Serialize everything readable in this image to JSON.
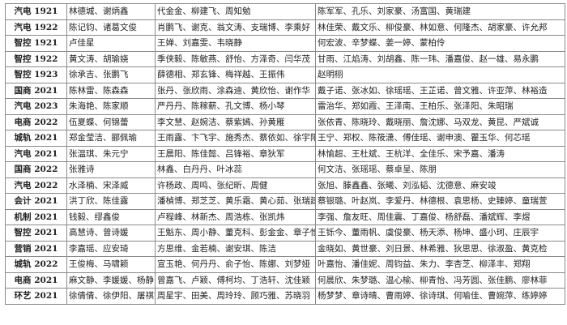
{
  "rows": [
    {
      "class": "汽电 1921",
      "mentors": "林德城、谢炳鑫",
      "group_a": "代金金、柳建飞、周知勉",
      "group_b": "陈军军、孔乐、刘家豪、汤富国、黄瑞建"
    },
    {
      "class": "汽电 1922",
      "mentors": "陈记钧、诸葛文俊",
      "group_a": "肖鹏飞、谢克、翁文涛、支瑞博、李乘好",
      "group_b": "林佳荣、戴文乐、柳俊豪、林如意、何隆杰、胡家豪、许允邦"
    },
    {
      "class": "智控 1921",
      "mentors": "卢佳星",
      "group_a": "王婵、刘嘉雯、韦晓静",
      "group_b": "何宏波、辛梦蝶、姜一婷、蒙柏伶"
    },
    {
      "class": "智控 1922",
      "mentors": "黄文涛、胡瑜娆",
      "group_a": "季侠毅、陈敏燕、舒怡、方泽奇、闫华茂",
      "group_b": "甘雨、江焰涛、刘胡鑫、陈一玮、潘嘉俊、赵一雄、易永鹏"
    },
    {
      "class": "智控 1923",
      "mentors": "徐承吉、张鹏飞",
      "group_a": "薛德相、郑玄锋、梅祥越、王振伟",
      "group_b": "赵明栩"
    },
    {
      "class": "国商 2021",
      "mentors": "陈林雷、陈森森",
      "group_a": "张丹、张欣雨、涂森迪、黄欣怡、谢作华",
      "group_b": "戴子诺、张冰如、徐瑶瑶、王芷诺、曾文雅、许亚萍、林裕造"
    },
    {
      "class": "汽电 2023",
      "mentors": "朱海艳、陈家顺",
      "group_a": "严丹丹、陈稼薪、孔文博、杨小琴",
      "group_b": "雷治华、郑如霞、王泽南、王柏乐、张泽阳、朱昭瑞"
    },
    {
      "class": "电商 2022",
      "mentors": "伍夏蝶、何锦蕾",
      "group_a": "李文慧、赵婉洁、蔡紫嫣、孙黄雁",
      "group_b": "张依青、陈晓玲、戴晓丽、詹沈娜、马双龙、黄昆、严斌诚"
    },
    {
      "class": "城轨 2021",
      "mentors": "郑金莹洁、郦佩瑜",
      "group_a": "王雨露、卞飞宇、施秀杰、蔡依如、徐宇阳",
      "group_b": "王宁、郑权、陈筱潇、傅佳瑶、谢申澳、瞿玉华、何芯瑶"
    },
    {
      "class": "汽电 2021",
      "mentors": "张温琪、朱元宁",
      "group_a": "王晨阳、陈佳懿、吕锋裕、章狄军",
      "group_b": "林愉超、王杜斌、王杭洋、全佳乐、宋予嘉、潘涛"
    },
    {
      "class": "国商 2022",
      "mentors": "张雅诗",
      "group_a": "林鑫、白丹丹、叶冰蕊",
      "group_b": "何文洁、张瑶瑶、蔡卓呈、陈朋"
    },
    {
      "class": "汽电 2022",
      "mentors": "水泽楠、宋泽威",
      "group_a": "许杨政、周鸣、张纪昕、周健",
      "group_b": "张旭、滕鑫鑫、张曦、刘泓韬、沈德意、麻安竣"
    },
    {
      "class": "会计 2021",
      "mentors": "洪丁欣、陈佳露",
      "group_a": "潘楨博、郑芝芝、黄乐霜、黄心茹、张瑞建",
      "group_b": "蔡银璐、叶赵岚、李爱丹、林德根、袁思杨、史臻婷、童瑞萱"
    },
    {
      "class": "机制 2021",
      "mentors": "钱毅、缪鑫俊",
      "group_a": "卢程峰、林新杰、周浩栋、张凯炜",
      "group_b": "李强、詹友旺、周佳震、丁嘉俊、杨舒磊、潘斌辉、李煜"
    },
    {
      "class": "智控 2021",
      "mentors": "高慧诗、曾诗媛",
      "group_a": "王魁东、周小静、董克科、彭金金、章子怡",
      "group_b": "王铄今、董雨帆、虞俊豪、杨天添、杨坤、盛小珂、庄辰宇"
    },
    {
      "class": "营销 2021",
      "mentors": "李嘉瑶、应安琦",
      "group_a": "方思维、金若楠、谢安琪、陈洁",
      "group_b": "金晓如、黄世豪、刘日景、林希雅、狄思思、徐淑盈、黄克检"
    },
    {
      "class": "城轨 2022",
      "mentors": "王俊梅、马啸颖",
      "group_a": "宣玉艳、何丹丹、俞子怡、陈娜、刘梦娅",
      "group_b": "叶嘉怡、潘佳妮、周钧益、朱力、李杏芝、柳泽丰、郑翔"
    },
    {
      "class": "电商 2021",
      "mentors": "麻文静、李媛媛、杨静",
      "group_a": "曾嘉飞、卢颖、傅柯均、丁浩轩、沈佳颖",
      "group_b": "何晨欣、朱梦璐、温心榆、柳青怡、冯芳圆、张佳鹏、廖林菲"
    },
    {
      "class": "环艺 2021",
      "mentors": "徐倩倩、徐伊阳、屠祺茜",
      "group_a": "周星宇、田美、周玲玲、顾巧雅、苏晓羽",
      "group_b": "杨梦梦、章诗晴、曹雨婷、徐诗琪、何喻佳、曹婉萍、练婷婷"
    }
  ]
}
